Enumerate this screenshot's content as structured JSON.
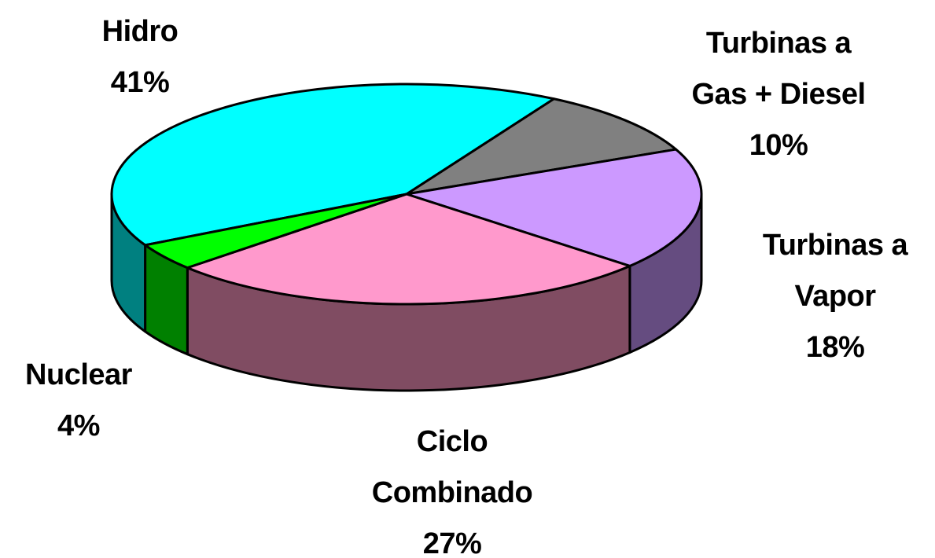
{
  "chart_data": {
    "type": "pie3d",
    "categories": [
      "Hidro",
      "Turbinas a Gas + Diesel",
      "Turbinas a Vapor",
      "Ciclo Combinado",
      "Nuclear"
    ],
    "values": [
      41,
      10,
      18,
      27,
      4
    ],
    "value_labels": [
      "41%",
      "10%",
      "18%",
      "27%",
      "4%"
    ],
    "colors": [
      "#00ffff",
      "#808080",
      "#cc99ff",
      "#ff99cc",
      "#00ff00"
    ],
    "side_colors": [
      "#008080",
      "#404040",
      "#654c80",
      "#804c62",
      "#008000"
    ]
  }
}
